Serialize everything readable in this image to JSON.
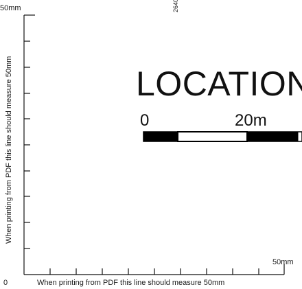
{
  "top_left_label": "50mm",
  "top_marker": "2640",
  "vertical_caption": "When printing from PDF this line should measure 50mm",
  "right_label": "50mm",
  "bottom_zero_label": "0",
  "bottom_caption": "When printing from PDF this line should measure 50mm",
  "title": "LOCATION",
  "scale_bar": {
    "start_label": "0",
    "end_label": "20m",
    "segment_colors": [
      "#000000",
      "#ffffff",
      "#000000"
    ]
  },
  "line_color": "#111111"
}
